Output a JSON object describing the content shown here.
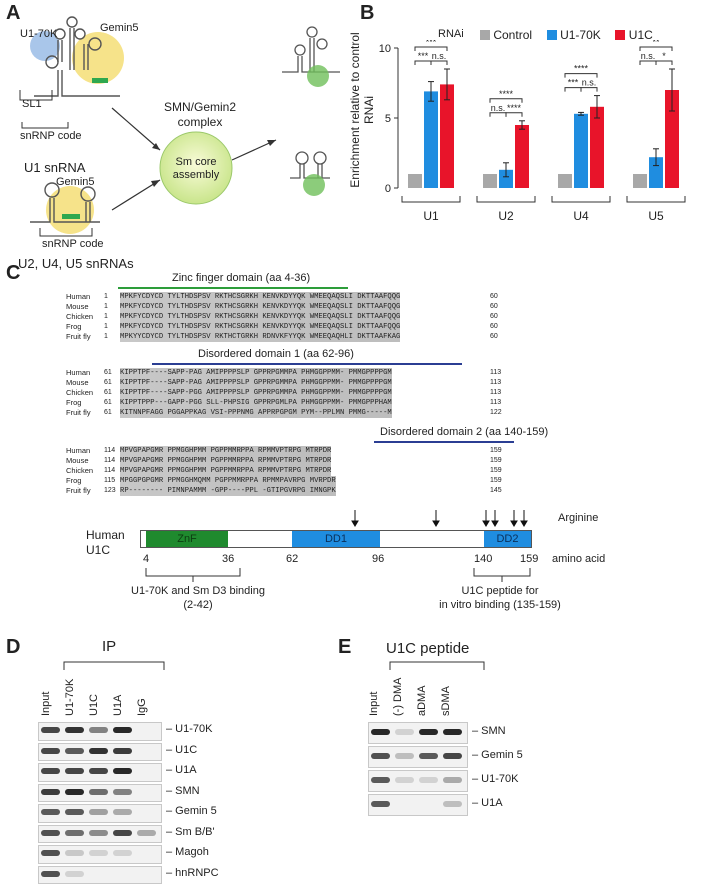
{
  "panels": {
    "A": "A",
    "B": "B",
    "C": "C",
    "D": "D",
    "E": "E"
  },
  "panelA": {
    "labels": {
      "u170k": "U1-70K",
      "gemin5_top": "Gemin5",
      "sl1": "SL1",
      "snrnp_code1": "snRNP code",
      "u1snrna": "U1 snRNA",
      "gemin5_bottom": "Gemin5",
      "snrnp_code2": "snRNP code",
      "u2u4u5": "U2, U4, U5 snRNAs",
      "complex": "SMN/Gemin2\ncomplex",
      "smcore": "Sm core\nassembly"
    }
  },
  "panelB": {
    "legend_title": "RNAi",
    "ylabel": "Enrichment relative to control RNAi",
    "colors": {
      "control": "#a8a8a8",
      "u170k": "#1f8de0",
      "u1c": "#e8142a"
    }
  },
  "chart_data": {
    "type": "bar",
    "categories": [
      "U1",
      "U2",
      "U4",
      "U5"
    ],
    "series": [
      {
        "name": "Control",
        "values": [
          1.0,
          1.0,
          1.0,
          1.0
        ]
      },
      {
        "name": "U1-70K",
        "values": [
          6.9,
          1.3,
          5.3,
          2.2
        ]
      },
      {
        "name": "U1C",
        "values": [
          7.4,
          4.5,
          5.8,
          7.0
        ]
      }
    ],
    "errors": [
      [
        0,
        0,
        0,
        0
      ],
      [
        0.7,
        0.5,
        0.1,
        0.6
      ],
      [
        1.1,
        0.3,
        0.8,
        1.5
      ]
    ],
    "ylim": [
      0,
      10
    ],
    "yticks": [
      0,
      5,
      10
    ],
    "significance": {
      "U1": [
        "***",
        "***",
        "n.s."
      ],
      "U2": [
        "****",
        "n.s.",
        "****"
      ],
      "U4": [
        "****",
        "***",
        "n.s."
      ],
      "U5": [
        "**",
        "n.s.",
        "*"
      ]
    },
    "xlabel": "",
    "ylabel": "Enrichment relative to control RNAi"
  },
  "panelC": {
    "zinc_title": "Zinc finger domain (aa 4-36)",
    "dis1_title": "Disordered domain 1 (aa 62-96)",
    "dis2_title": "Disordered domain 2 (aa 140-159)",
    "species": [
      "Human",
      "Mouse",
      "Chicken",
      "Frog",
      "Fruit fly"
    ],
    "block1": {
      "start": [
        "1",
        "1",
        "1",
        "1",
        "1"
      ],
      "seq": [
        "MPKFYCDYCD TYLTHDSPSV RKTHCSGRKH KENVKDYYQK WMEEQAQSLI DKTTAAFQQG",
        "MPKFYCDYCD TYLTHDSPSV RKTHCSGRKH KENVKDYYQK WMEEQAQSLI DKTTAAFQQG",
        "MPKFYCDYCD TYLTHDSPSV RKTHCSGRKH KENVKDYYQK WMEEQAQSLI DKTTAAFQQG",
        "MPKFYCDYCD TYLTHDSPSV RKTHCSGRKH KENVKDYYQK WMEEQAQSLI DKTTAAFQQG",
        "MPKYYCDYCD TYLTHDSPSV RKTHCTGRKH RDNVKFYYQK WMEEQAQHLI DKTTAAFKAG"
      ],
      "end": [
        "60",
        "60",
        "60",
        "60",
        "60"
      ]
    },
    "block2": {
      "start": [
        "61",
        "61",
        "61",
        "61",
        "61"
      ],
      "seq": [
        "KIPPTPF----SAPP-PAG AMIPPPPSLP GPPRPGMMPA PHMGGPPMM- PMMGPPPPGM",
        "KIPPTPF----SAPP-PAG AMIPPPPSLP GPPRPGMMPA PHMGGPPMM- PMMGPPPPGM",
        "KIPPTPF----SAPP-PGG AMIPPPPSLP GPPRPGMMPA PHMGGPPMM- PMMGPPPPGM",
        "KIPPTPPP---GAPP-PGG SLL-PHPSIG GPPRPGMLPA PHMGGPPMM- PMMGPPPHAM",
        "KITNNPFAGG PGGAPPKAG VSI-PPPNMG APPRPGPGM PYM--PPLMN PMMG-----M"
      ],
      "end": [
        "113",
        "113",
        "113",
        "113",
        "122"
      ]
    },
    "block3": {
      "start": [
        "114",
        "114",
        "114",
        "115",
        "123"
      ],
      "seq": [
        "MPVGPAPGMR PPMGGHPMM PGPPMMRPPA RPMMVPTRPG MTRPDR",
        "MPVGPAPGMR PPMGGHPMM PGPPMMRPPA RPMMVPTRPG MTRPDR",
        "MPVGPAPGMR PPMGGHPMM PGPPMMRPPA RPMMVPTRPG MTRPDR",
        "MPGGPGPGMR PPMGGHMQMM PGPPMMRPPA RPMMPAVRPG MVRPDR",
        "RP-------- PIMNPAMMM -GPP----PPL -GTIPGVRPG IMNGPK"
      ],
      "end": [
        "159",
        "159",
        "159",
        "159",
        "145"
      ]
    },
    "domain_map": {
      "species": "Human\nU1C",
      "znf": "ZnF",
      "dd1": "DD1",
      "dd2": "DD2",
      "arginine": "Arginine",
      "amino_acid": "amino acid",
      "ticks": [
        "4",
        "36",
        "62",
        "96",
        "140",
        "159"
      ],
      "binding1": "U1-70K and Sm D3 binding\n(2-42)",
      "binding2": "U1C peptide for\nin vitro binding (135-159)"
    }
  },
  "panelD": {
    "title": "IP",
    "lanes": [
      "Input",
      "U1-70K",
      "U1C",
      "U1A",
      "IgG"
    ],
    "rows": [
      "U1-70K",
      "U1C",
      "U1A",
      "SMN",
      "Gemin 5",
      "Sm B/B'",
      "Magoh",
      "hnRNPC"
    ]
  },
  "panelE": {
    "title": "U1C peptide",
    "lanes": [
      "Input",
      "(-) DMA",
      "aDMA",
      "sDMA"
    ],
    "rows": [
      "SMN",
      "Gemin 5",
      "U1-70K",
      "U1A"
    ]
  }
}
